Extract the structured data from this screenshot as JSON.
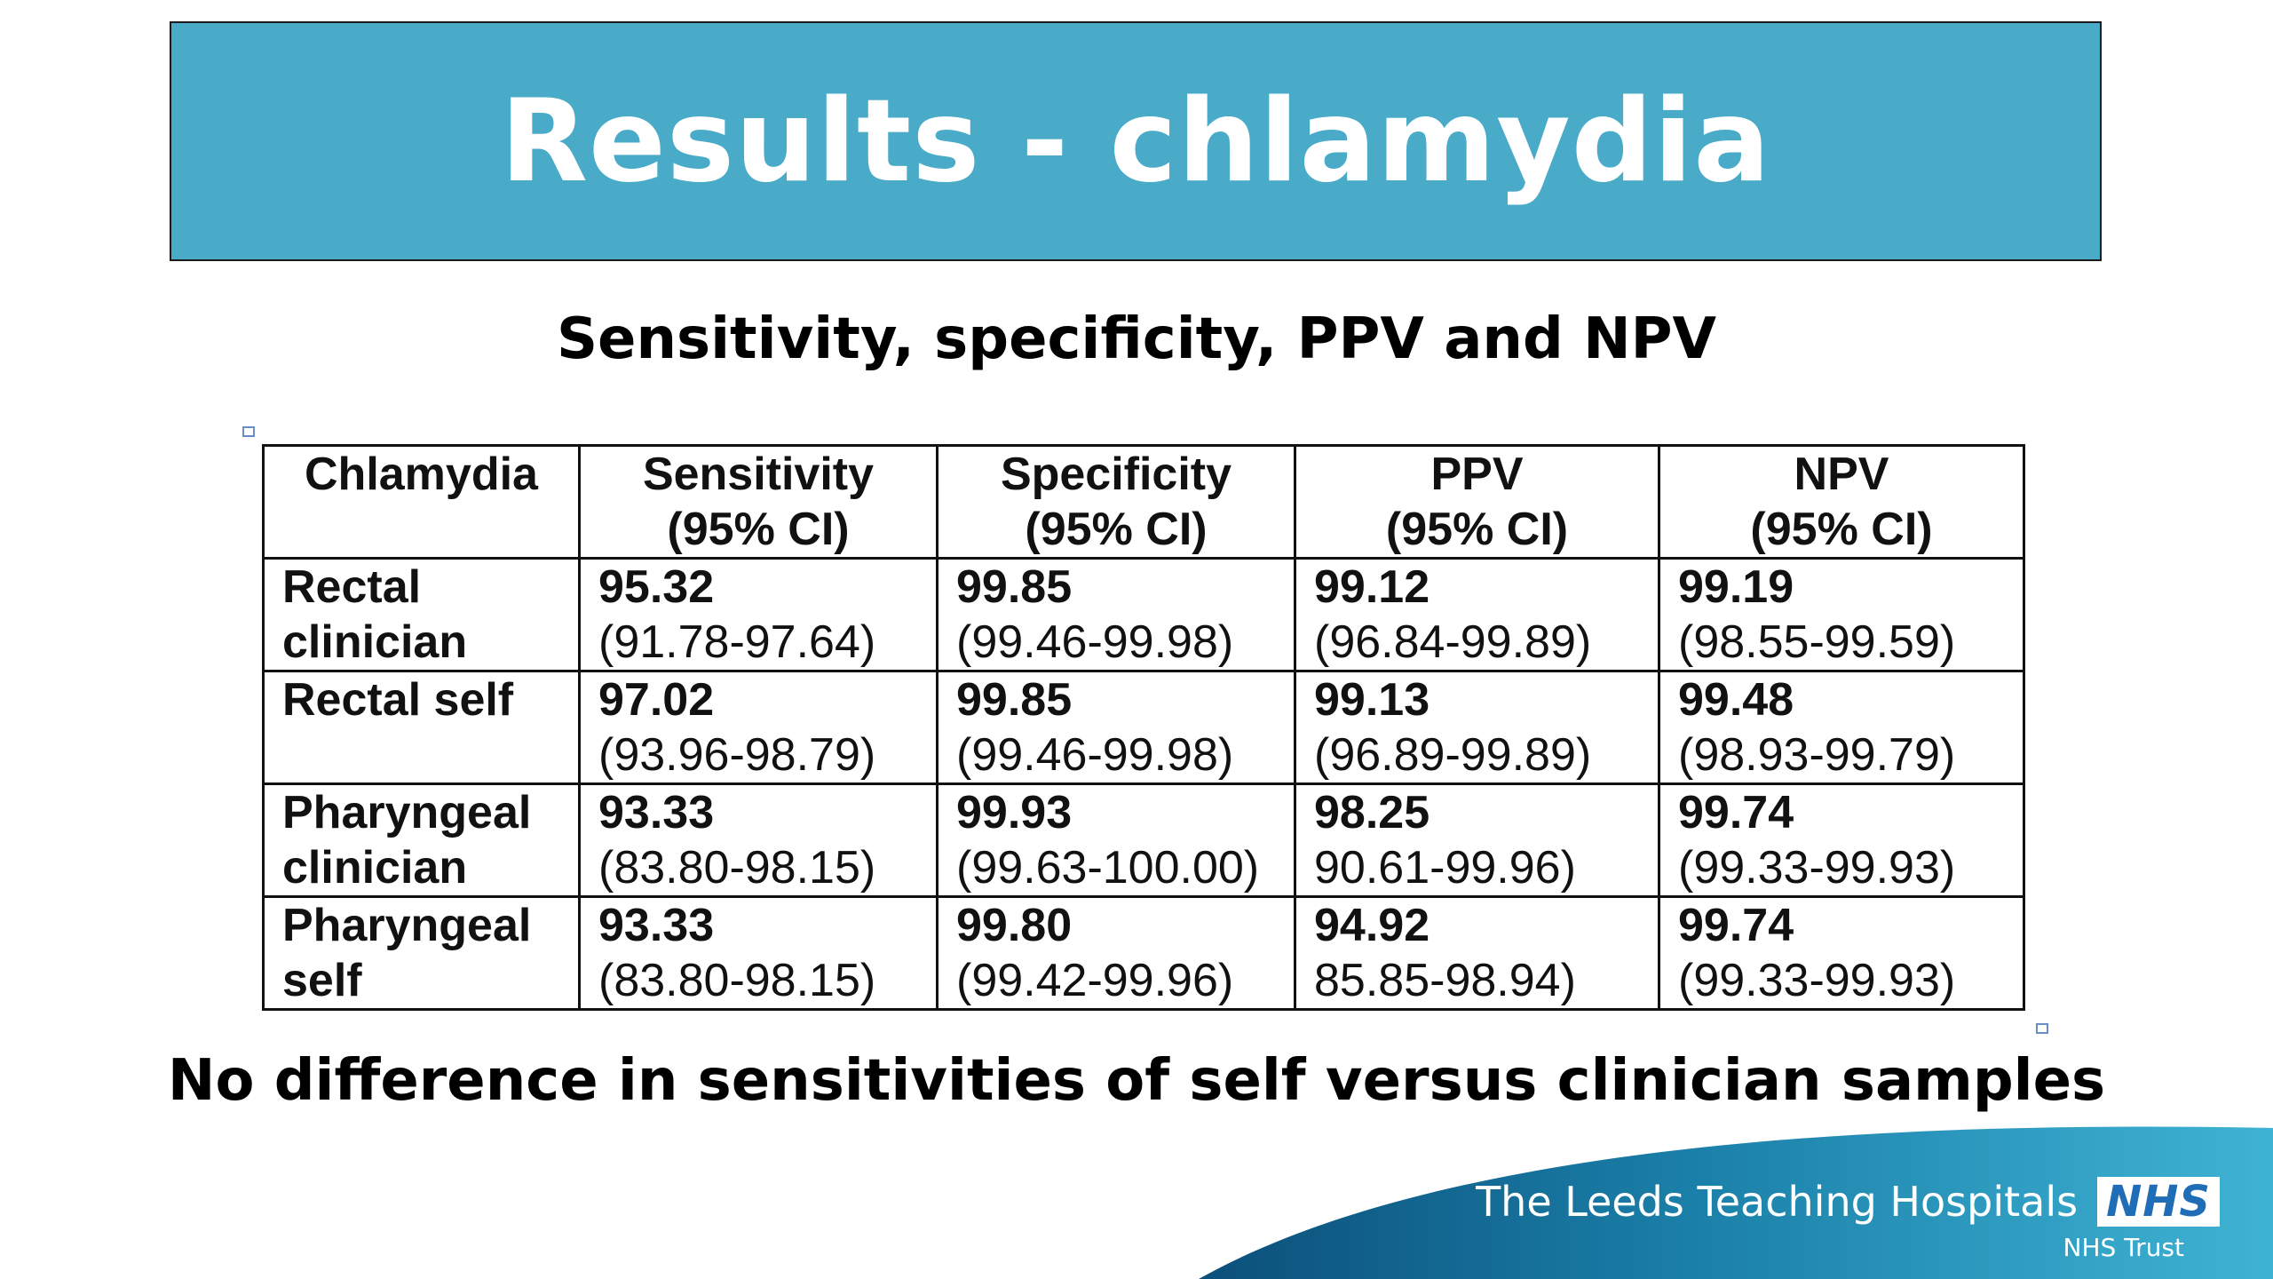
{
  "title": "Results - chlamydia",
  "subtitle": "Sensitivity, specificity, PPV and NPV",
  "table": {
    "headers": [
      {
        "line1": "Chlamydia",
        "line2": ""
      },
      {
        "line1": "Sensitivity",
        "line2": "(95% CI)"
      },
      {
        "line1": "Specificity",
        "line2": "(95% CI)"
      },
      {
        "line1": "PPV",
        "line2": "(95% CI)"
      },
      {
        "line1": "NPV",
        "line2": "(95% CI)"
      }
    ],
    "rows": [
      {
        "label": "Rectal clinician",
        "cells": [
          {
            "value": "95.32",
            "ci": "(91.78-97.64)"
          },
          {
            "value": "99.85",
            "ci": "(99.46-99.98)"
          },
          {
            "value": "99.12",
            "ci": "(96.84-99.89)"
          },
          {
            "value": "99.19",
            "ci": "(98.55-99.59)"
          }
        ]
      },
      {
        "label": "Rectal self",
        "cells": [
          {
            "value": "97.02",
            "ci": "(93.96-98.79)"
          },
          {
            "value": "99.85",
            "ci": "(99.46-99.98)"
          },
          {
            "value": "99.13",
            "ci": "(96.89-99.89)"
          },
          {
            "value": "99.48",
            "ci": "(98.93-99.79)"
          }
        ]
      },
      {
        "label": "Pharyngeal clinician",
        "cells": [
          {
            "value": "93.33",
            "ci": "(83.80-98.15)"
          },
          {
            "value": "99.93",
            "ci": "(99.63-100.00)"
          },
          {
            "value": "98.25",
            "ci": "90.61-99.96)"
          },
          {
            "value": "99.74",
            "ci": "(99.33-99.93)"
          }
        ]
      },
      {
        "label": "Pharyngeal self",
        "cells": [
          {
            "value": "93.33",
            "ci": "(83.80-98.15)"
          },
          {
            "value": "99.80",
            "ci": "(99.42-99.96)"
          },
          {
            "value": "94.92",
            "ci": "85.85-98.94)"
          },
          {
            "value": "99.74",
            "ci": "(99.33-99.93)"
          }
        ]
      }
    ]
  },
  "conclusion": "No difference in sensitivities of self versus clinician samples",
  "footer": {
    "organisation": "The Leeds Teaching Hospitals",
    "logo_text": "NHS",
    "trust_label": "NHS Trust"
  },
  "colors": {
    "banner": "#4aabc9",
    "footer_dark": "#0b4f7a",
    "footer_light": "#3fb3d4",
    "nhs_blue": "#1e6db6"
  }
}
